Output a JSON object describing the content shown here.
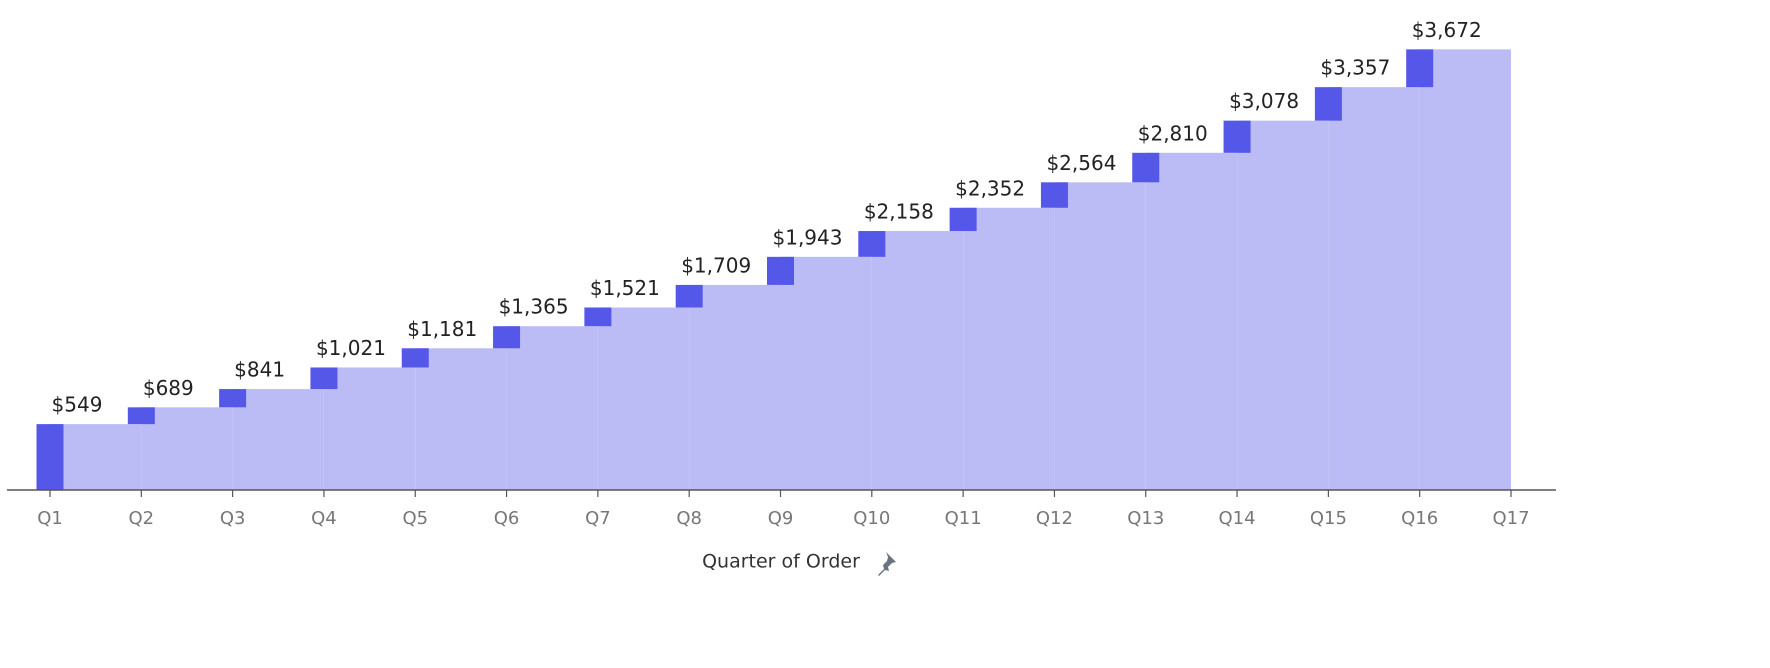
{
  "chart_data": {
    "type": "waterfall",
    "x_label": "Quarter of Order",
    "categories": [
      "Q1",
      "Q2",
      "Q3",
      "Q4",
      "Q5",
      "Q6",
      "Q7",
      "Q8",
      "Q9",
      "Q10",
      "Q11",
      "Q12",
      "Q13",
      "Q14",
      "Q15",
      "Q16",
      "Q17"
    ],
    "values": [
      549,
      689,
      841,
      1021,
      1181,
      1365,
      1521,
      1709,
      1943,
      2158,
      2352,
      2564,
      2810,
      3078,
      3357,
      3672,
      null
    ],
    "value_labels": [
      "$549",
      "$689",
      "$841",
      "$1,021",
      "$1,181",
      "$1,365",
      "$1,521",
      "$1,709",
      "$1,943",
      "$2,158",
      "$2,352",
      "$2,564",
      "$2,810",
      "$3,078",
      "$3,357",
      "$3,672",
      null
    ],
    "color": "#5457e8",
    "area_color": "#bbbcf5",
    "ylim": [
      0,
      4000
    ]
  }
}
